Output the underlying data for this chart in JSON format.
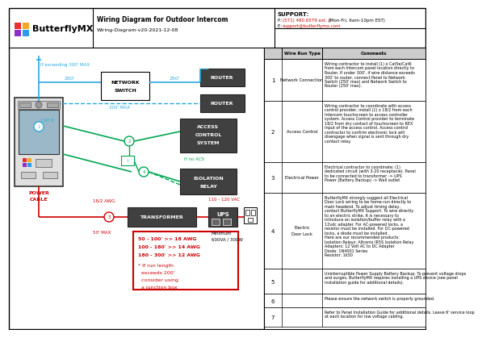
{
  "title": "Wiring Diagram for Outdoor Intercom",
  "subtitle": "Wiring-Diagram-v20-2021-12-08",
  "support_title": "SUPPORT:",
  "support_phone_prefix": "P: ",
  "support_phone_num": "(571) 480.6579 ext. 2",
  "support_phone_suffix": " (Mon-Fri, 6am-10pm EST)",
  "support_email_prefix": "E: ",
  "support_email": "support@butterflymx.com",
  "bg_color": "#ffffff",
  "cyan": "#29aae1",
  "green": "#00a651",
  "red": "#cc0000",
  "dark_box": "#404040",
  "wire_run_rows": [
    {
      "num": "1",
      "type": "Network Connection",
      "comment": "Wiring contractor to install (1) x Cat5e/Cat6\nfrom each Intercom panel location directly to\nRouter. If under 300', if wire distance exceeds\n300' to router, connect Panel to Network\nSwitch (250' max) and Network Switch to\nRouter (250' max)."
    },
    {
      "num": "2",
      "type": "Access Control",
      "comment": "Wiring contractor to coordinate with access\ncontrol provider, install (1) x 18/2 from each\nIntercom touchscreen to access controller\nsystem. Access Control provider to terminate\n18/2 from dry contact of touchscreen to REX\nInput of the access control. Access control\ncontractor to confirm electronic lock will\ndisengage when signal is sent through dry\ncontact relay."
    },
    {
      "num": "3",
      "type": "Electrical Power",
      "comment": "Electrical contractor to coordinate: (1)\ndedicated circuit (with 3-20 receptacle). Panel\nto be connected to transformer -> UPS\nPower (Battery Backup) -> Wall outlet"
    },
    {
      "num": "4",
      "type": "Electric Door Lock",
      "comment": "ButterflyMX strongly suggest all Electrical\nDoor Lock wiring to be home-run directly to\nmain headend. To adjust timing delay,\ncontact ButterflyMX Support. To wire directly\nto an electric strike, it is necessary to\nintroduce an isolation/buffer relay with a\n12vdc adapter. For AC-powered locks, a\nresistor must be installed. For DC-powered\nlocks, a diode must be installed.\nHere are our recommended products:\nIsolation Relays: Altronix IR5S Isolation Relay\nAdapters: 12 Volt AC to DC Adapter\nDiode: 1N4001 Series\nResistor: 1k50"
    },
    {
      "num": "5",
      "type": "",
      "comment": "Uninterruptible Power Supply Battery Backup. To prevent voltage drops\nand surges, ButterflyMX requires installing a UPS device (see panel\ninstallation guide for additional details)."
    },
    {
      "num": "6",
      "type": "",
      "comment": "Please ensure the network switch is properly grounded."
    },
    {
      "num": "7",
      "type": "",
      "comment": "Refer to Panel Installation Guide for additional details. Leave 6' service loop\nat each location for low voltage cabling."
    }
  ]
}
